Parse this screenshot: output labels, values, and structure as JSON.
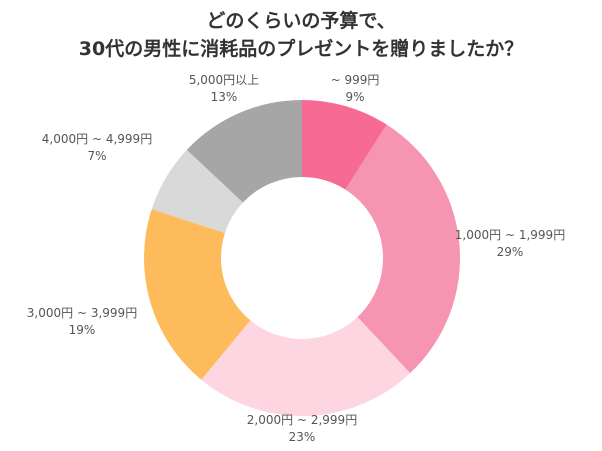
{
  "chart_data": {
    "type": "pie",
    "donut": true,
    "title": [
      "どのくらいの予算で、",
      "30代の男性に消耗品のプレゼントを贈りましたか？"
    ],
    "slices": [
      {
        "label": "~ 999円",
        "value": 9,
        "value_label": "9%",
        "color": "#F76A93"
      },
      {
        "label": "1,000円 ~ 1,999円",
        "value": 29,
        "value_label": "29%",
        "color": "#F595B2"
      },
      {
        "label": "2,000円 ~ 2,999円",
        "value": 23,
        "value_label": "23%",
        "color": "#FDD6E2"
      },
      {
        "label": "3,000円 ~ 3,999円",
        "value": 19,
        "value_label": "19%",
        "color": "#FDBB5B"
      },
      {
        "label": "4,000円 ~ 4,999円",
        "value": 7,
        "value_label": "7%",
        "color": "#D9D9D9"
      },
      {
        "label": "5,000円以上",
        "value": 13,
        "value_label": "13%",
        "color": "#A6A6A6"
      }
    ]
  }
}
